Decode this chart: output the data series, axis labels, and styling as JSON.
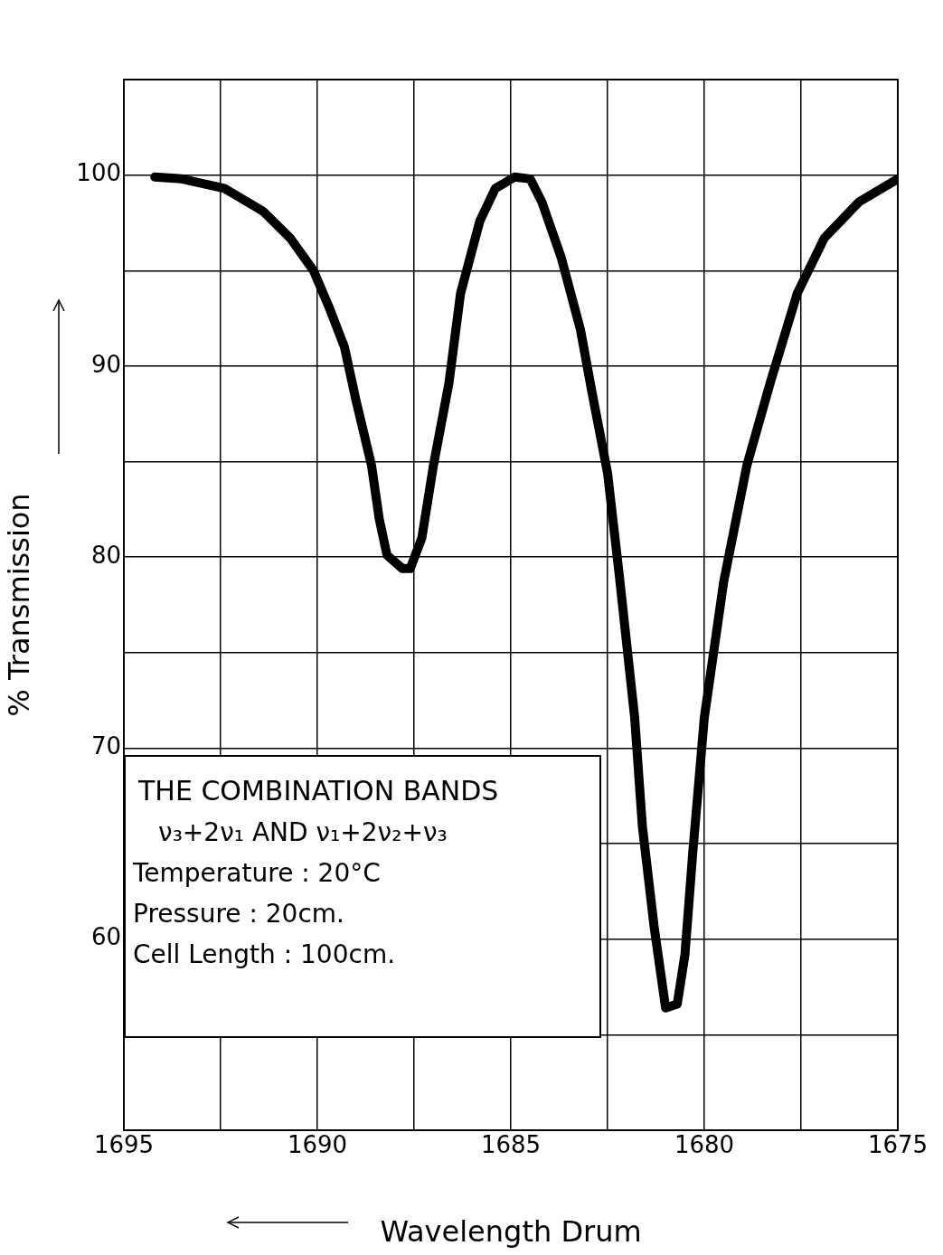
{
  "chart_data": {
    "type": "line",
    "xlabel": "Wavelength Drum",
    "ylabel": "% Transmission",
    "xlim": [
      1695,
      1675
    ],
    "ylim": [
      50,
      105
    ],
    "xticks": [
      1695,
      {
        "value": 1692.5,
        "label": null
      },
      1690,
      {
        "value": 1687.5,
        "label": null
      },
      1685,
      {
        "value": 1682.5,
        "label": null
      },
      1680,
      {
        "value": 1677.5,
        "label": null
      },
      1675
    ],
    "yticks": [
      {
        "value": 55,
        "label": null
      },
      60,
      {
        "value": 65,
        "label": null
      },
      70,
      {
        "value": 75,
        "label": null
      },
      80,
      {
        "value": 85,
        "label": null
      },
      90,
      {
        "value": 95,
        "label": null
      },
      100
    ],
    "grid": true,
    "legend": false,
    "marker": "none",
    "line_style": "solid",
    "annotations": [
      "THE COMBINATION BANDS",
      "ν₃+2ν₁ AND ν₁+2ν₂+ν₃",
      "Temperature : 20°C",
      "Pressure : 20cm.",
      "Cell Length : 100cm."
    ],
    "series": [
      {
        "color": "#000000",
        "x": [
          1694.2,
          1693.5,
          1692.4,
          1691.4,
          1690.7,
          1690.1,
          1689.7,
          1689.3,
          1689.0,
          1688.6,
          1688.4,
          1688.2,
          1687.8,
          1687.6,
          1687.3,
          1687.0,
          1686.6,
          1686.3,
          1685.8,
          1685.4,
          1684.9,
          1684.5,
          1684.2,
          1683.7,
          1683.2,
          1682.9,
          1682.5,
          1682.2,
          1681.8,
          1681.6,
          1681.3,
          1681.0,
          1680.7,
          1680.5,
          1680.3,
          1680.0,
          1679.5,
          1678.9,
          1678.3,
          1677.6,
          1676.9,
          1676.0,
          1675.0
        ],
        "values": [
          99.9,
          99.8,
          99.3,
          98.1,
          96.7,
          95.0,
          93.1,
          91.0,
          88.2,
          84.8,
          82.0,
          80.1,
          79.4,
          79.4,
          81.0,
          84.8,
          89.1,
          93.8,
          97.6,
          99.3,
          99.9,
          99.8,
          98.6,
          95.7,
          91.9,
          88.6,
          84.4,
          79.1,
          71.6,
          65.9,
          60.7,
          56.4,
          56.6,
          59.2,
          64.5,
          71.6,
          78.7,
          84.8,
          89.1,
          93.8,
          96.7,
          98.6,
          99.8
        ]
      }
    ]
  }
}
